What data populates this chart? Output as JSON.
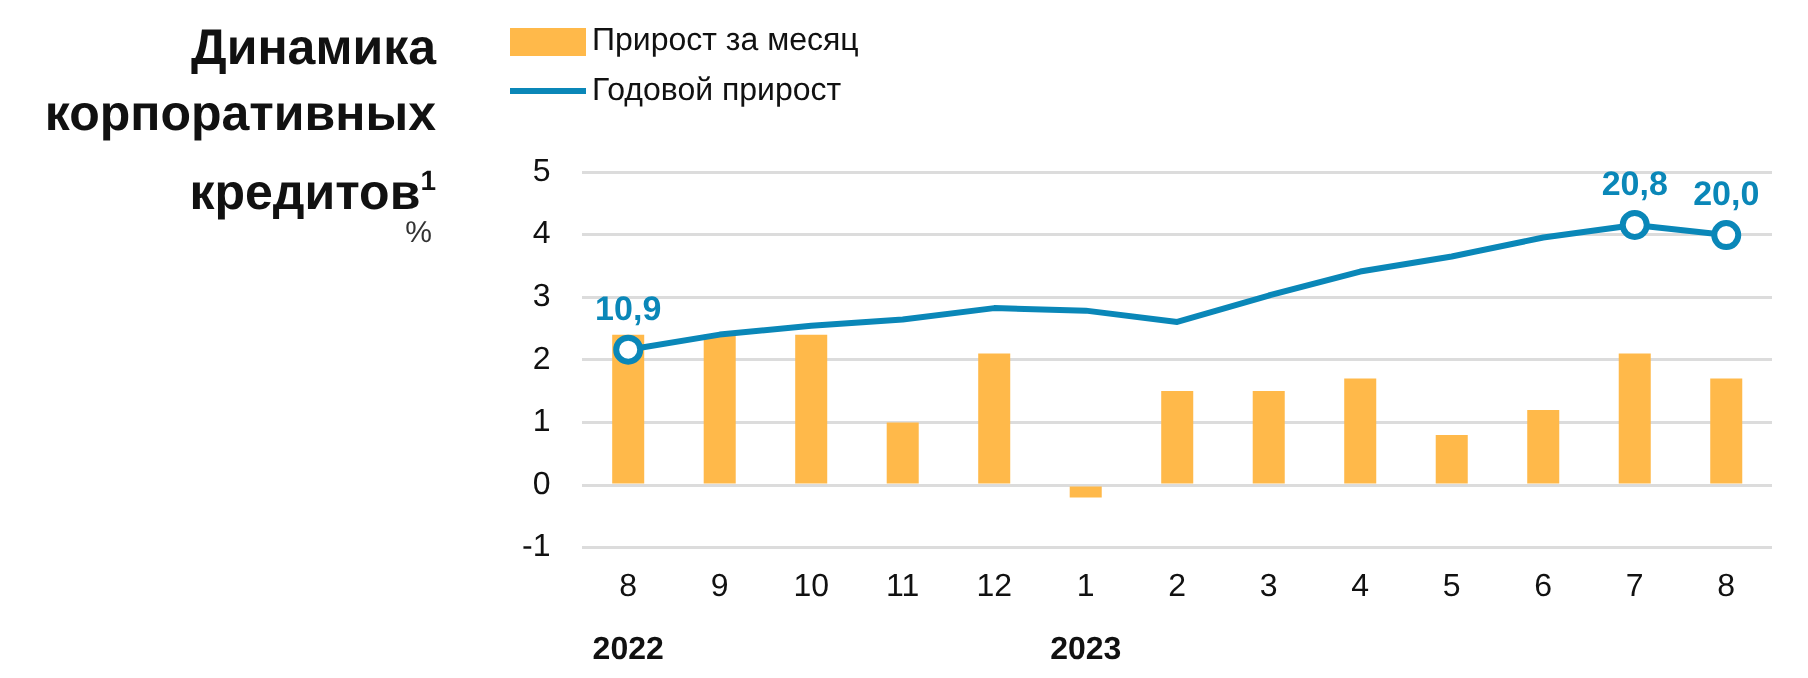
{
  "chart_data": {
    "type": "bar",
    "title": "Динамика корпоративных кредитов$^{1}$",
    "ylabel": "%",
    "categories": [
      "8",
      "9",
      "10",
      "11",
      "12",
      "1",
      "2",
      "3",
      "4",
      "5",
      "6",
      "7",
      "8"
    ],
    "series": [
      {
        "name": "Прирост за месяц",
        "color": "#ffb94a",
        "values": [
          2.4,
          2.4,
          2.4,
          1.0,
          2.1,
          -0.2,
          1.5,
          1.5,
          1.7,
          0.8,
          1.2,
          2.1,
          1.7
        ]
      },
      {
        "name": "Годовой прирост",
        "type": "line",
        "axis": "y2",
        "color": "#0a87b8",
        "values": [
          10.9,
          12.1,
          12.8,
          13.3,
          14.2,
          14.0,
          13.1,
          15.2,
          17.1,
          18.3,
          19.8,
          20.8,
          20.0
        ],
        "value_labels": [
          "10,9",
          null,
          null,
          null,
          null,
          null,
          null,
          null,
          null,
          null,
          null,
          "20,8",
          "20,0"
        ]
      }
    ],
    "ylim": [
      -1,
      5
    ],
    "yticks": [
      -1,
      0,
      1,
      2,
      3,
      4,
      5
    ],
    "y2lim": [
      -4.8,
      25
    ],
    "tick_labels": "xy",
    "grid": "y",
    "legend": "top left",
    "annotations": [
      "2022",
      "2023"
    ]
  }
}
